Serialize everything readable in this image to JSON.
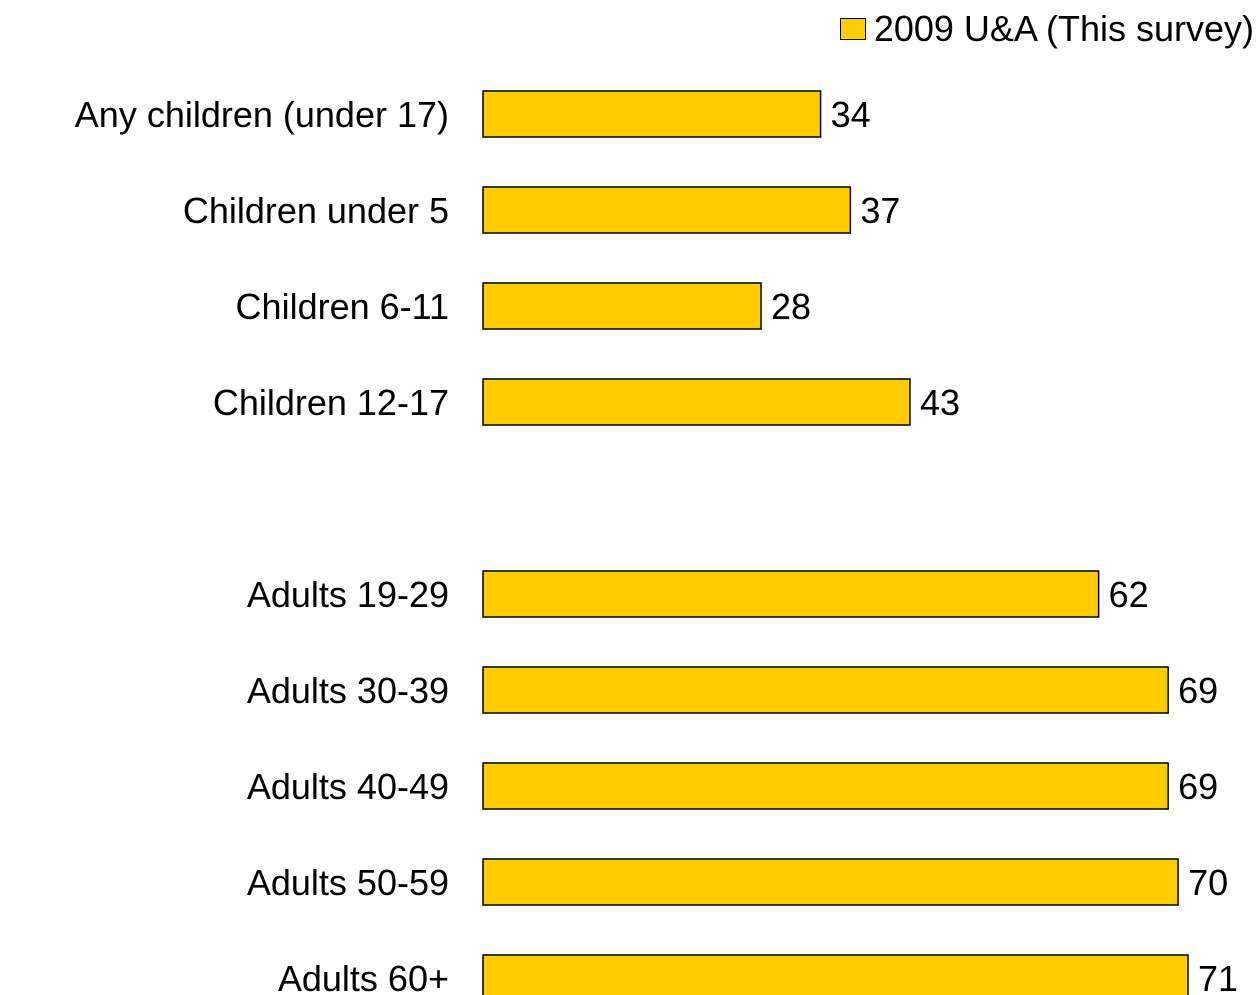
{
  "chart_data": {
    "type": "bar",
    "orientation": "horizontal",
    "categories": [
      "Any children (under 17)",
      "Children under 5",
      "Children 6-11",
      "Children 12-17",
      "Adults 19-29",
      "Adults 30-39",
      "Adults 40-49",
      "Adults 50-59",
      "Adults 60+"
    ],
    "groups": [
      {
        "categories": [
          "Any children (under 17)",
          "Children under 5",
          "Children 6-11",
          "Children 12-17"
        ]
      },
      {
        "categories": [
          "Adults 19-29",
          "Adults 30-39",
          "Adults 40-49",
          "Adults 50-59",
          "Adults 60+"
        ]
      }
    ],
    "series": [
      {
        "name": "2009 U&A (This survey)",
        "values": [
          34,
          37,
          28,
          43,
          62,
          69,
          69,
          70,
          71
        ],
        "color": "#FFCC00"
      }
    ],
    "data_labels": true,
    "xlim": [
      0,
      71
    ],
    "grid": false,
    "legend_position": "top-right"
  }
}
